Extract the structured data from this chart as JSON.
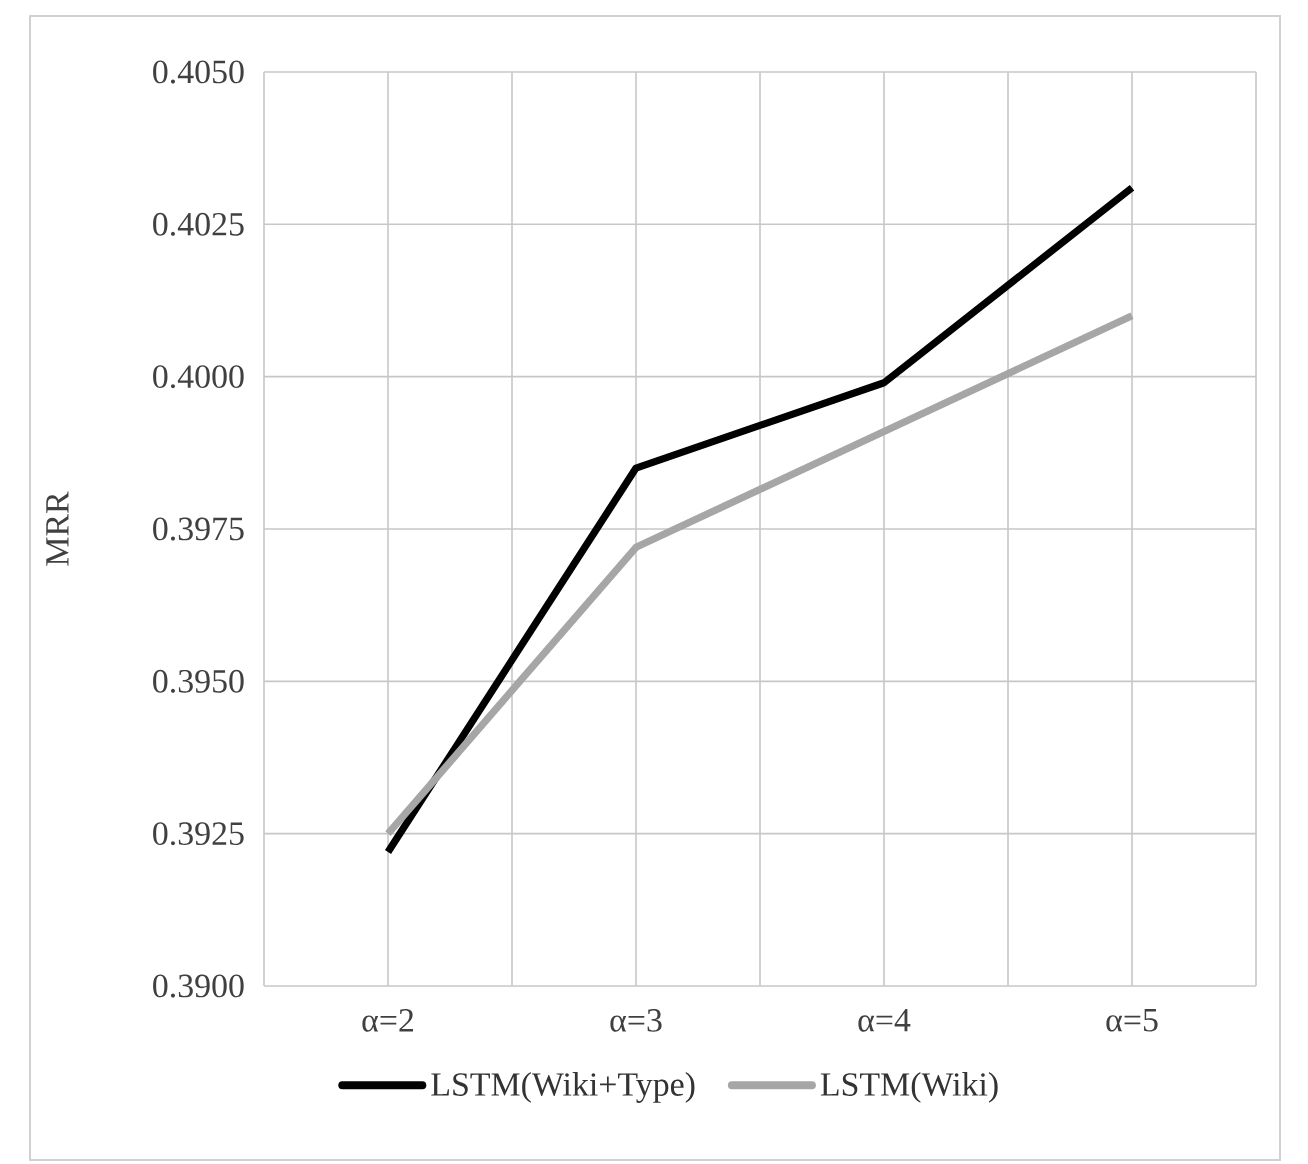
{
  "chart_data": {
    "type": "line",
    "ylabel": "MRR",
    "categories": [
      "α=2",
      "α=3",
      "α=4",
      "α=5"
    ],
    "series": [
      {
        "name": "LSTM(Wiki+Type)",
        "color": "#000000",
        "values": [
          0.3922,
          0.3985,
          0.3999,
          0.4031
        ]
      },
      {
        "name": "LSTM(Wiki)",
        "color": "#a6a6a6",
        "values": [
          0.3925,
          0.3972,
          0.3991,
          0.401
        ]
      }
    ],
    "ylim": [
      0.39,
      0.405
    ],
    "yticks": [
      {
        "value": 0.39,
        "label": "0.3900"
      },
      {
        "value": 0.3925,
        "label": "0.3925"
      },
      {
        "value": 0.395,
        "label": "0.3950"
      },
      {
        "value": 0.3975,
        "label": "0.3975"
      },
      {
        "value": 0.4,
        "label": "0.4000"
      },
      {
        "value": 0.4025,
        "label": "0.4025"
      },
      {
        "value": 0.405,
        "label": "0.4050"
      }
    ],
    "grid": true,
    "legend": "bottom",
    "marker": "none",
    "line_style": "solid"
  }
}
